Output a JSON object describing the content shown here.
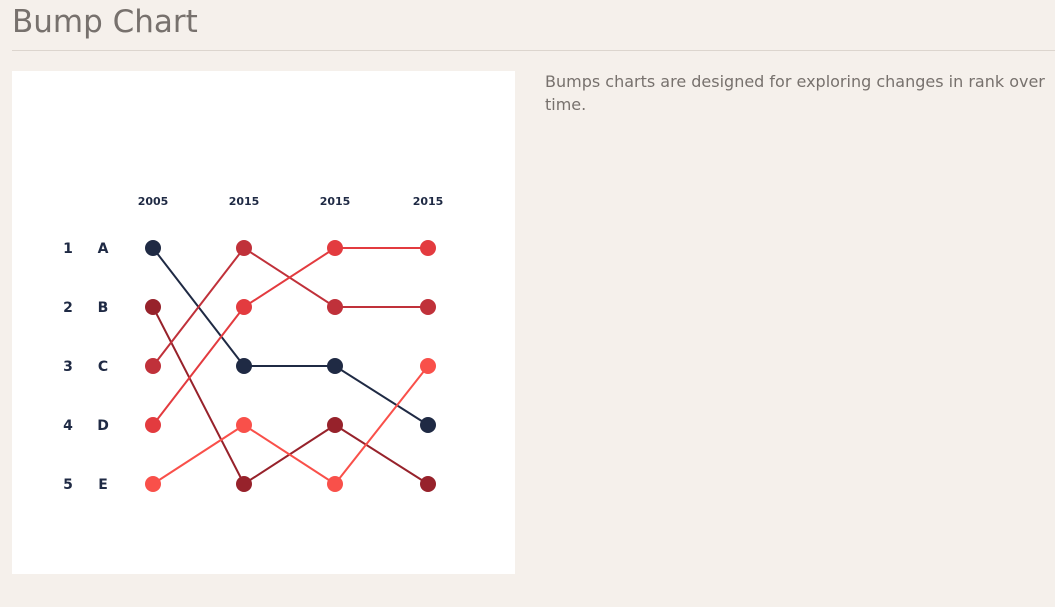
{
  "page": {
    "title": "Bump Chart",
    "description": "Bumps charts are designed for exploring changes in rank over time."
  },
  "chart_data": {
    "type": "line",
    "subtype": "bump",
    "title": "",
    "x": [
      "2005",
      "2015",
      "2015",
      "2015"
    ],
    "y_ranks": [
      "1",
      "2",
      "3",
      "4",
      "5"
    ],
    "y_items": [
      "A",
      "B",
      "C",
      "D",
      "E"
    ],
    "y_inverted": true,
    "grid": false,
    "series": [
      {
        "values": [
          1,
          3,
          3,
          4
        ],
        "color": "#1f2a44"
      },
      {
        "values": [
          2,
          5,
          4,
          5
        ],
        "color": "#97222b"
      },
      {
        "values": [
          3,
          1,
          2,
          2
        ],
        "color": "#c0313a"
      },
      {
        "values": [
          4,
          2,
          1,
          1
        ],
        "color": "#e33b3f"
      },
      {
        "values": [
          5,
          4,
          5,
          3
        ],
        "color": "#f9504a"
      }
    ]
  }
}
